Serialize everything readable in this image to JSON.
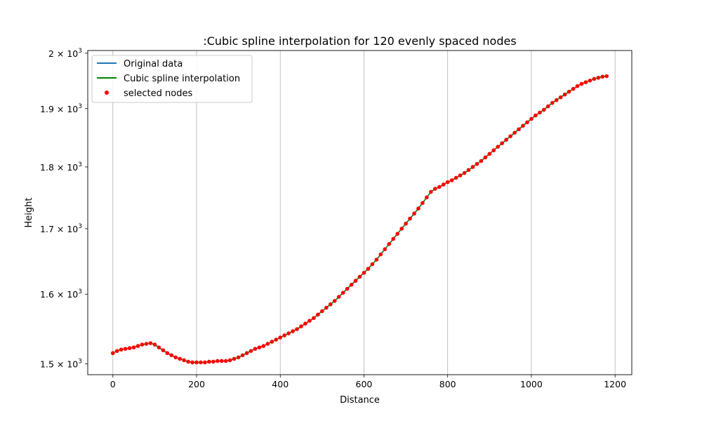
{
  "chart_data": {
    "type": "line",
    "title": ":Cubic spline interpolation for 120 evenly spaced nodes",
    "xlabel": "Distance",
    "ylabel": "Height",
    "y_scale": "log",
    "xlim": [
      -60,
      1240
    ],
    "ylim": [
      1485,
      2005
    ],
    "x_ticks": [
      0,
      200,
      400,
      600,
      800,
      1000,
      1200
    ],
    "x_tick_labels": [
      "0",
      "200",
      "400",
      "600",
      "800",
      "1000",
      "1200"
    ],
    "y_ticks": [
      {
        "value": 1500,
        "mantissa": "1.5",
        "base": "× 10",
        "exp": "3"
      },
      {
        "value": 1600,
        "mantissa": "1.6",
        "base": "× 10",
        "exp": "3"
      },
      {
        "value": 1700,
        "mantissa": "1.7",
        "base": "× 10",
        "exp": "3"
      },
      {
        "value": 1800,
        "mantissa": "1.8",
        "base": "× 10",
        "exp": "3"
      },
      {
        "value": 1900,
        "mantissa": "1.9",
        "base": "× 10",
        "exp": "3"
      },
      {
        "value": 2000,
        "mantissa": "2",
        "base": "× 10",
        "exp": "3"
      }
    ],
    "grid": "x",
    "legend_placement": "top-left",
    "series": [
      {
        "name": "Original data",
        "kind": "line",
        "color": "#1f77b4"
      },
      {
        "name": "Cubic spline interpolation",
        "kind": "line",
        "color": "#008000"
      },
      {
        "name": "selected nodes",
        "kind": "scatter",
        "color": "#ff0000"
      }
    ],
    "x": [
      0,
      10,
      20,
      30,
      40,
      50,
      60,
      70,
      80,
      90,
      100,
      110,
      120,
      130,
      140,
      150,
      160,
      170,
      180,
      190,
      200,
      210,
      220,
      230,
      240,
      250,
      260,
      270,
      280,
      290,
      300,
      310,
      320,
      330,
      340,
      350,
      360,
      370,
      380,
      390,
      400,
      410,
      420,
      430,
      440,
      450,
      460,
      470,
      480,
      490,
      500,
      510,
      520,
      530,
      540,
      550,
      560,
      570,
      580,
      590,
      600,
      610,
      620,
      630,
      640,
      650,
      660,
      670,
      680,
      690,
      700,
      710,
      720,
      730,
      740,
      750,
      760,
      770,
      780,
      790,
      800,
      810,
      820,
      830,
      840,
      850,
      860,
      870,
      880,
      890,
      900,
      910,
      920,
      930,
      940,
      950,
      960,
      970,
      980,
      990,
      1000,
      1010,
      1020,
      1030,
      1040,
      1050,
      1060,
      1070,
      1080,
      1090,
      1100,
      1110,
      1120,
      1130,
      1140,
      1150,
      1160,
      1170,
      1180
    ],
    "y": [
      1515,
      1518,
      1520,
      1521,
      1522,
      1523,
      1525,
      1527,
      1528,
      1529,
      1527,
      1523,
      1519,
      1515,
      1512,
      1509,
      1507,
      1505,
      1503,
      1502,
      1502,
      1502,
      1502,
      1503,
      1503,
      1504,
      1504,
      1504,
      1505,
      1507,
      1509,
      1512,
      1515,
      1518,
      1521,
      1523,
      1525,
      1528,
      1531,
      1534,
      1537,
      1540,
      1543,
      1546,
      1549,
      1553,
      1557,
      1561,
      1565,
      1570,
      1575,
      1580,
      1585,
      1590,
      1596,
      1602,
      1608,
      1614,
      1620,
      1626,
      1632,
      1638,
      1645,
      1652,
      1660,
      1668,
      1676,
      1684,
      1692,
      1700,
      1708,
      1716,
      1724,
      1732,
      1741,
      1750,
      1759,
      1764,
      1767,
      1771,
      1775,
      1778,
      1782,
      1786,
      1790,
      1795,
      1800,
      1805,
      1810,
      1816,
      1822,
      1828,
      1834,
      1840,
      1846,
      1852,
      1858,
      1864,
      1870,
      1876,
      1882,
      1888,
      1893,
      1898,
      1904,
      1910,
      1915,
      1920,
      1925,
      1930,
      1935,
      1940,
      1944,
      1947,
      1950,
      1953,
      1955,
      1957,
      1958
    ]
  }
}
